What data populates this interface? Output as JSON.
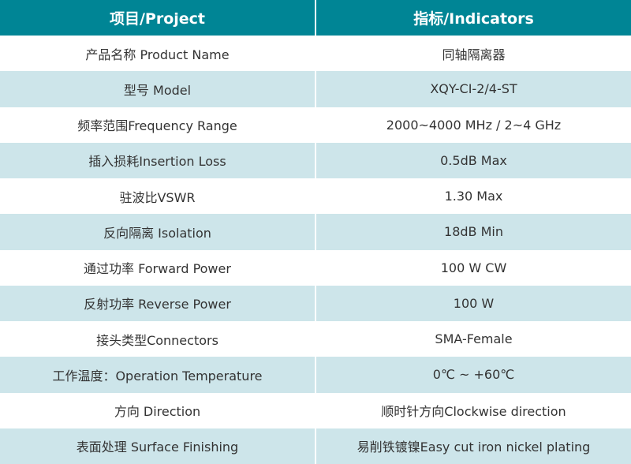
{
  "table": {
    "headers": [
      "项目/Project",
      "指标/Indicators"
    ],
    "rows": [
      [
        "产品名称 Product Name",
        "同轴隔离器"
      ],
      [
        "型号 Model",
        "XQY-CI-2/4-ST"
      ],
      [
        "频率范围Frequency Range",
        "2000~4000 MHz / 2~4 GHz"
      ],
      [
        "插入损耗Insertion Loss",
        "0.5dB Max"
      ],
      [
        "驻波比VSWR",
        "1.30 Max"
      ],
      [
        "反向隔离 Isolation",
        "18dB Min"
      ],
      [
        "通过功率 Forward Power",
        "100 W CW"
      ],
      [
        "反射功率 Reverse Power",
        "100 W"
      ],
      [
        "接头类型Connectors",
        "SMA-Female"
      ],
      [
        "工作温度：Operation Temperature",
        "0℃ ~ +60℃"
      ],
      [
        "方向 Direction",
        "顺时针方向Clockwise direction"
      ],
      [
        "表面处理 Surface Finishing",
        "易削铁镀镍Easy cut iron nickel plating"
      ]
    ]
  },
  "colors": {
    "header": "#008595",
    "alt_row": "#cde5ea"
  }
}
